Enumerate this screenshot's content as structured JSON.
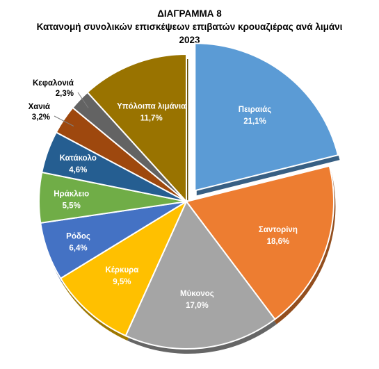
{
  "chart_data": {
    "type": "pie",
    "title": "ΔΙΑΓΡΑΜΜΑ 8",
    "subtitle": "Κατανομή συνολικών επισκέψεων επιβατών κρουαζιέρας ανά λιμάνι",
    "year": "2023",
    "slices": [
      {
        "label": "Πειραιάς",
        "value": 21.1,
        "value_label": "21,1%",
        "color": "#5b9bd5"
      },
      {
        "label": "Σαντορίνη",
        "value": 18.6,
        "value_label": "18,6%",
        "color": "#ed7d31"
      },
      {
        "label": "Μύκονος",
        "value": 17.0,
        "value_label": "17,0%",
        "color": "#a5a5a5"
      },
      {
        "label": "Κέρκυρα",
        "value": 9.5,
        "value_label": "9,5%",
        "color": "#ffc000"
      },
      {
        "label": "Ρόδος",
        "value": 6.4,
        "value_label": "6,4%",
        "color": "#4472c4"
      },
      {
        "label": "Ηράκλειο",
        "value": 5.5,
        "value_label": "5,5%",
        "color": "#70ad47"
      },
      {
        "label": "Κατάκολο",
        "value": 4.6,
        "value_label": "4,6%",
        "color": "#255e91"
      },
      {
        "label": "Χανιά",
        "value": 3.2,
        "value_label": "3,2%",
        "color": "#9e480e"
      },
      {
        "label": "Κεφαλονιά",
        "value": 2.3,
        "value_label": "2,3%",
        "color": "#636363"
      },
      {
        "label": "Υπόλοιπα λιμάνια",
        "value": 11.7,
        "value_label": "11,7%",
        "color": "#997300"
      }
    ],
    "exploded": [
      "Πειραιάς"
    ],
    "legend": "none"
  }
}
